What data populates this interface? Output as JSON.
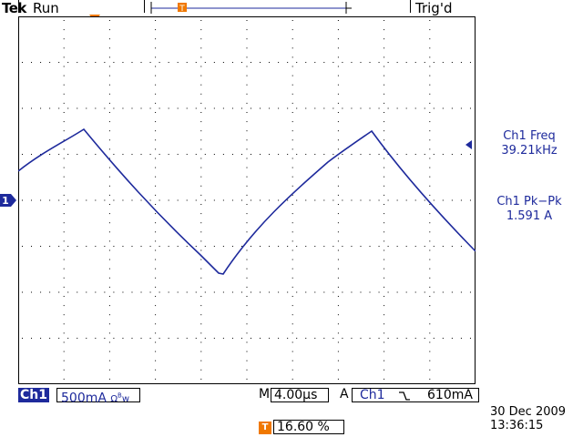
{
  "status": {
    "brand": "Tek",
    "run_state": "Run",
    "trigger_state": "Trig'd"
  },
  "measurements": {
    "freq_label": "Ch1 Freq",
    "freq_value": "39.21kHz",
    "pkpk_label": "Ch1 Pk−Pk",
    "pkpk_value": "1.591 A"
  },
  "channel": {
    "label": "Ch1",
    "marker": "1",
    "scale": "500mA",
    "coupling_icon": "ohm-bandwidth-icon",
    "color": "#1e2a9c"
  },
  "timebase": {
    "mode": "M",
    "value": "4.00µs"
  },
  "trigger": {
    "type": "A",
    "source": "Ch1",
    "slope_icon": "falling-edge-icon",
    "level": "610mA",
    "marker_color": "#f07800"
  },
  "position": {
    "value": "16.60 %"
  },
  "datetime": {
    "date": "30 Dec  2009",
    "time": "13:36:15"
  }
}
